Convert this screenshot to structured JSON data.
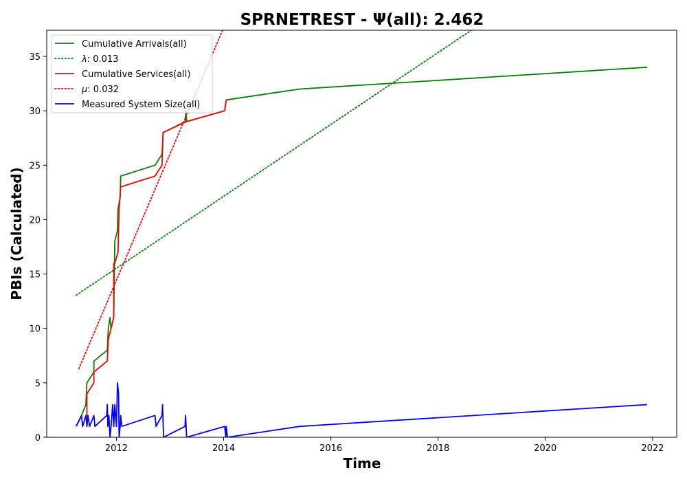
{
  "chart_data": {
    "type": "line",
    "title": "SPRNETREST -  Ψ(all): 2.462",
    "xlabel": "Time",
    "ylabel": "PBIs (Calculated)",
    "xlim": [
      2010.7,
      2022.45
    ],
    "ylim": [
      0,
      37.4
    ],
    "x_ticks": [
      2012,
      2014,
      2016,
      2018,
      2020,
      2022
    ],
    "x_tick_labels": [
      "2012",
      "2014",
      "2016",
      "2018",
      "2020",
      "2022"
    ],
    "y_ticks": [
      0,
      5,
      10,
      15,
      20,
      25,
      30,
      35
    ],
    "y_tick_labels": [
      "0",
      "5",
      "10",
      "15",
      "20",
      "25",
      "30",
      "35"
    ],
    "grid": false,
    "legend_position": "top-left",
    "series": [
      {
        "name": "Cumulative Arrivals(all)",
        "label_parts": {
          "symbol": "",
          "text": "Cumulative Arrivals(all)"
        },
        "style": "solid",
        "color": "#008000",
        "points": [
          [
            2011.25,
            1
          ],
          [
            2011.35,
            2
          ],
          [
            2011.43,
            3
          ],
          [
            2011.45,
            5
          ],
          [
            2011.58,
            6
          ],
          [
            2011.58,
            7
          ],
          [
            2011.83,
            8
          ],
          [
            2011.85,
            10
          ],
          [
            2011.88,
            11
          ],
          [
            2011.9,
            10
          ],
          [
            2011.95,
            11
          ],
          [
            2011.97,
            18
          ],
          [
            2012.02,
            19
          ],
          [
            2012.03,
            21
          ],
          [
            2012.07,
            22
          ],
          [
            2012.08,
            24
          ],
          [
            2012.72,
            25
          ],
          [
            2012.85,
            26
          ],
          [
            2012.87,
            28
          ],
          [
            2013.28,
            29
          ],
          [
            2013.3,
            30
          ],
          [
            2013.31,
            29
          ],
          [
            2014.02,
            30
          ],
          [
            2014.05,
            31
          ],
          [
            2015.42,
            32
          ],
          [
            2021.9,
            34
          ]
        ]
      },
      {
        "name": "λ: 0.013",
        "label_parts": {
          "symbol": "λ",
          "text": ": 0.013"
        },
        "style": "dotted",
        "color": "#008000",
        "points": [
          [
            2011.25,
            13.05
          ],
          [
            2018.62,
            37.4
          ]
        ]
      },
      {
        "name": "Cumulative Services(all)",
        "label_parts": {
          "symbol": "",
          "text": "Cumulative Services(all)"
        },
        "style": "solid",
        "color": "#ff0000",
        "points": [
          [
            2011.45,
            1
          ],
          [
            2011.45,
            4
          ],
          [
            2011.58,
            5
          ],
          [
            2011.58,
            6
          ],
          [
            2011.83,
            7
          ],
          [
            2011.85,
            9
          ],
          [
            2011.95,
            11
          ],
          [
            2011.95,
            16
          ],
          [
            2011.97,
            16
          ],
          [
            2012.03,
            17
          ],
          [
            2012.05,
            21
          ],
          [
            2012.08,
            23
          ],
          [
            2012.72,
            24
          ],
          [
            2012.85,
            25
          ],
          [
            2012.87,
            28
          ],
          [
            2013.3,
            29
          ],
          [
            2014.02,
            30
          ],
          [
            2014.05,
            31
          ]
        ]
      },
      {
        "name": "μ: 0.032",
        "label_parts": {
          "symbol": "μ",
          "text": ": 0.032"
        },
        "style": "dotted",
        "color": "#ff0000",
        "points": [
          [
            2011.3,
            6.3
          ],
          [
            2013.98,
            37.4
          ]
        ]
      },
      {
        "name": "Measured System Size(all)",
        "label_parts": {
          "symbol": "",
          "text": "Measured System Size(all)"
        },
        "style": "solid",
        "color": "#0000ff",
        "points": [
          [
            2011.25,
            1
          ],
          [
            2011.35,
            2
          ],
          [
            2011.37,
            1
          ],
          [
            2011.43,
            2
          ],
          [
            2011.45,
            1
          ],
          [
            2011.47,
            2
          ],
          [
            2011.5,
            1
          ],
          [
            2011.58,
            2
          ],
          [
            2011.6,
            1
          ],
          [
            2011.82,
            2
          ],
          [
            2011.83,
            3
          ],
          [
            2011.84,
            1
          ],
          [
            2011.86,
            2
          ],
          [
            2011.88,
            0
          ],
          [
            2011.9,
            1
          ],
          [
            2011.93,
            3
          ],
          [
            2011.95,
            1
          ],
          [
            2011.97,
            3
          ],
          [
            2012.0,
            1
          ],
          [
            2012.02,
            5
          ],
          [
            2012.04,
            4
          ],
          [
            2012.05,
            0
          ],
          [
            2012.07,
            1
          ],
          [
            2012.08,
            2
          ],
          [
            2012.1,
            1
          ],
          [
            2012.72,
            2
          ],
          [
            2012.74,
            1
          ],
          [
            2012.85,
            2
          ],
          [
            2012.86,
            3
          ],
          [
            2012.88,
            0
          ],
          [
            2013.28,
            1
          ],
          [
            2013.29,
            2
          ],
          [
            2013.31,
            0
          ],
          [
            2014.02,
            1
          ],
          [
            2014.04,
            0
          ],
          [
            2014.05,
            1
          ],
          [
            2014.07,
            0
          ],
          [
            2015.42,
            1
          ],
          [
            2021.9,
            3
          ]
        ]
      }
    ]
  }
}
